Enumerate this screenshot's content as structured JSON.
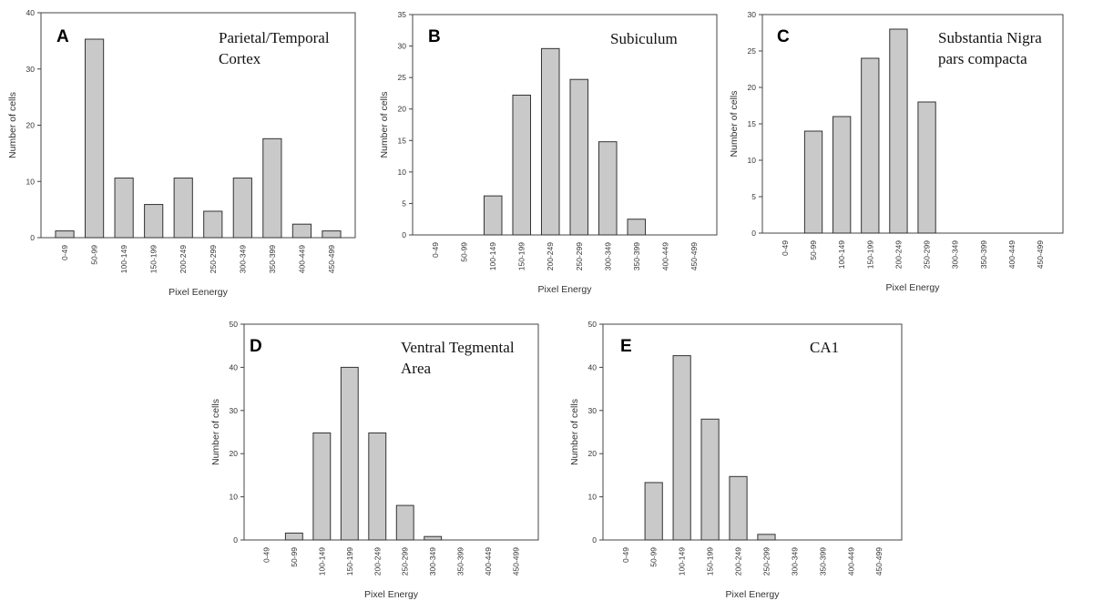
{
  "figure": {
    "bar_fill": "#c9c9c9",
    "bar_stroke": "#333333"
  },
  "chart_data": [
    {
      "type": "bar",
      "panel": "A",
      "title_lines": [
        "Parietal/Temporal",
        "Cortex"
      ],
      "xlabel": "Pixel Eenergy",
      "ylabel": "Number of cells",
      "ylim": [
        0,
        40
      ],
      "yticks": [
        0,
        10,
        20,
        30,
        40
      ],
      "categories": [
        "0-49",
        "50-99",
        "100-149",
        "150-199",
        "200-249",
        "250-299",
        "300-349",
        "350-399",
        "400-449",
        "450-499"
      ],
      "values": [
        1.2,
        35.3,
        10.6,
        5.9,
        10.6,
        4.7,
        10.6,
        17.6,
        2.4,
        1.2
      ]
    },
    {
      "type": "bar",
      "panel": "B",
      "title_lines": [
        "Subiculum"
      ],
      "xlabel": "Pixel Energy",
      "ylabel": "Number of cells",
      "ylim": [
        0,
        35
      ],
      "yticks": [
        0,
        5,
        10,
        15,
        20,
        25,
        30,
        35
      ],
      "categories": [
        "0-49",
        "50-99",
        "100-149",
        "150-199",
        "200-249",
        "250-299",
        "300-349",
        "350-399",
        "400-449",
        "450-499"
      ],
      "values": [
        0,
        0,
        6.2,
        22.2,
        29.6,
        24.7,
        14.8,
        2.5,
        0,
        0
      ]
    },
    {
      "type": "bar",
      "panel": "C",
      "title_lines": [
        "Substantia Nigra",
        "pars compacta"
      ],
      "xlabel": "Pixel Energy",
      "ylabel": "Number of cells",
      "ylim": [
        0,
        30
      ],
      "yticks": [
        0,
        5,
        10,
        15,
        20,
        25,
        30
      ],
      "categories": [
        "0-49",
        "50-99",
        "100-149",
        "150-199",
        "200-249",
        "250-299",
        "300-349",
        "350-399",
        "400-449",
        "450-499"
      ],
      "values": [
        0,
        14,
        16,
        24,
        28,
        18,
        0,
        0,
        0,
        0
      ]
    },
    {
      "type": "bar",
      "panel": "D",
      "title_lines": [
        "Ventral Tegmental",
        "Area"
      ],
      "xlabel": "Pixel Energy",
      "ylabel": "Number of cells",
      "ylim": [
        0,
        50
      ],
      "yticks": [
        0,
        10,
        20,
        30,
        40,
        50
      ],
      "categories": [
        "0-49",
        "50-99",
        "100-149",
        "150-199",
        "200-249",
        "250-299",
        "300-349",
        "350-399",
        "400-449",
        "450-499"
      ],
      "values": [
        0,
        1.6,
        24.8,
        40.0,
        24.8,
        8.0,
        0.8,
        0,
        0,
        0
      ]
    },
    {
      "type": "bar",
      "panel": "E",
      "title_lines": [
        "CA1"
      ],
      "xlabel": "Pixel Energy",
      "ylabel": "Number of cells",
      "ylim": [
        0,
        50
      ],
      "yticks": [
        0,
        10,
        20,
        30,
        40,
        50
      ],
      "categories": [
        "0-49",
        "50-99",
        "100-149",
        "150-199",
        "200-249",
        "250-299",
        "300-349",
        "350-399",
        "400-449",
        "450-499"
      ],
      "values": [
        0,
        13.3,
        42.7,
        28.0,
        14.7,
        1.3,
        0,
        0,
        0,
        0
      ]
    }
  ]
}
